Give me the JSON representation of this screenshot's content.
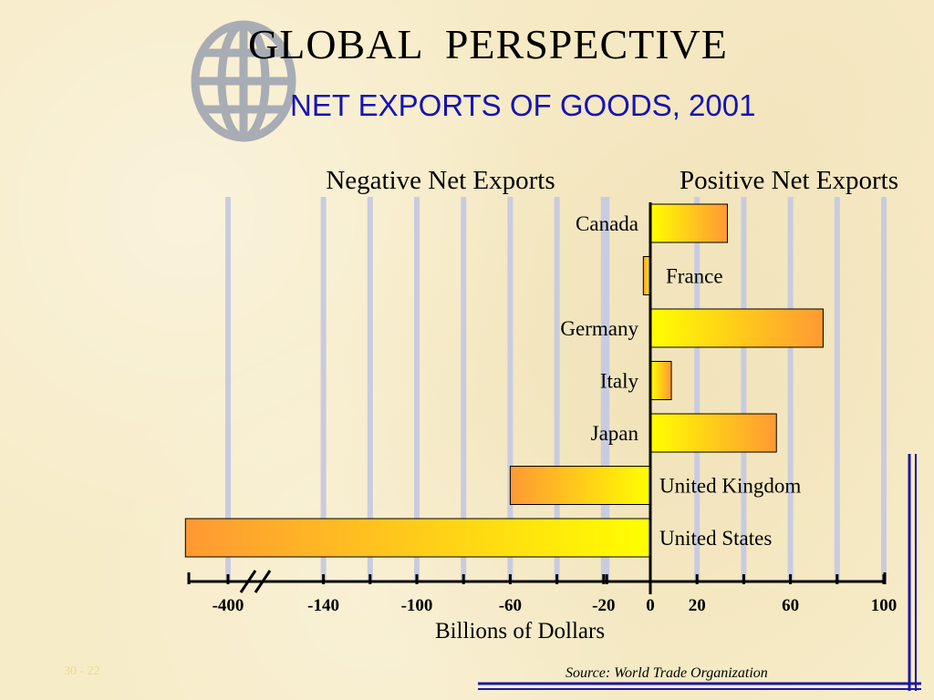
{
  "header": {
    "title": "GLOBAL  PERSPECTIVE",
    "subtitle": "NET EXPORTS OF GOODS, 2001"
  },
  "colors": {
    "subtitle": "#1414b4",
    "bar_light": "#ffff00",
    "bar_dark": "#ff9933",
    "gridline": "#c8cce0",
    "frame": "#1a1aa0",
    "globe": "#a8acb4"
  },
  "icons": {
    "globe": "globe-icon"
  },
  "chart_data": {
    "type": "bar",
    "orientation": "horizontal",
    "left_heading": "Negative Net Exports",
    "right_heading": "Positive Net Exports",
    "xlabel": "Billions of Dollars",
    "unit": "billions of dollars",
    "axis_break": "between -400 and -140",
    "tick_labels": [
      "-400",
      "-140",
      "-100",
      "-60",
      "-20",
      "0",
      "20",
      "60",
      "100"
    ],
    "categories": [
      "Canada",
      "France",
      "Germany",
      "Italy",
      "Japan",
      "United Kingdom",
      "United States"
    ],
    "values": [
      33,
      -3,
      74,
      9,
      54,
      -60,
      -427
    ],
    "source": "Source: World Trade Organization"
  },
  "footer": {
    "slide_number": "30 - 22"
  }
}
